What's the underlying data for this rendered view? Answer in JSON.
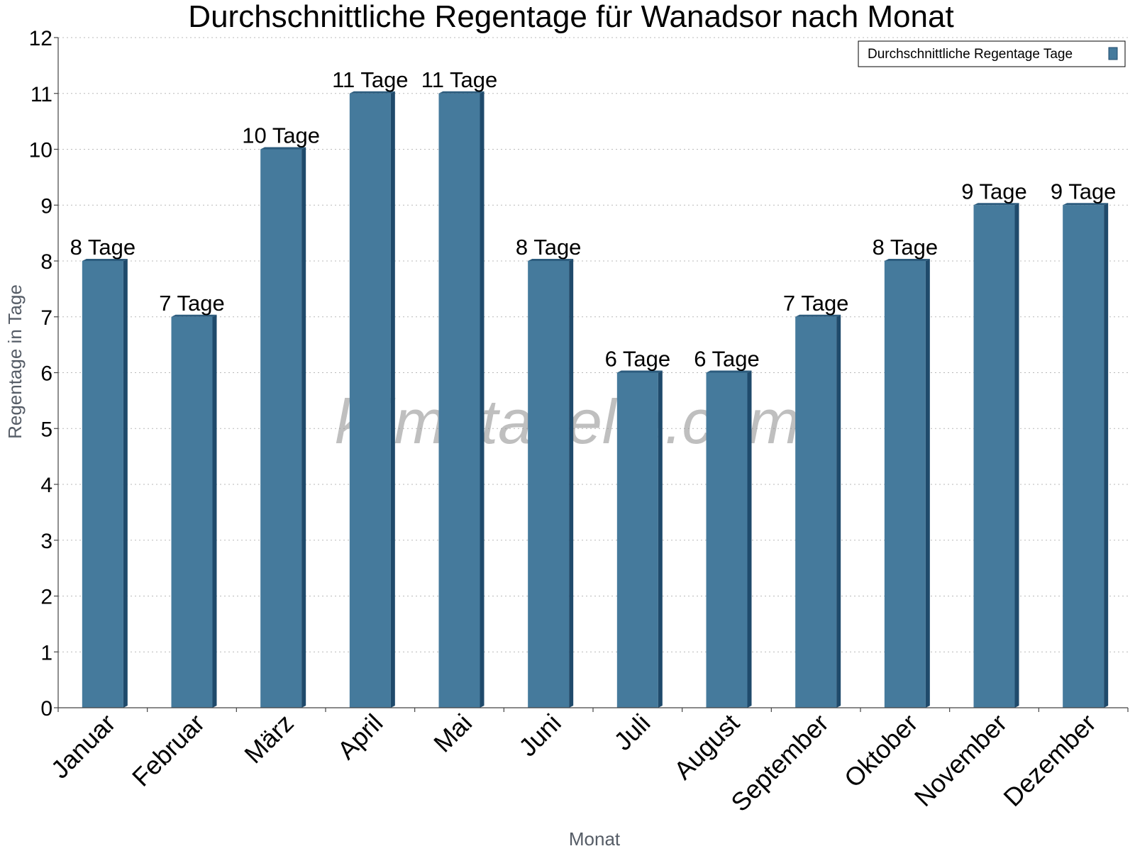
{
  "colors": {
    "bar": "#457a9c",
    "bar_side": "#1f4a6b",
    "bar_top": "#2c5c7e"
  },
  "watermark": "klimatabelle.com",
  "chart_data": {
    "type": "bar",
    "title": "Durchschnittliche Regentage für Wanadsor nach Monat",
    "xlabel": "Monat",
    "ylabel": "Regentage in Tage",
    "ylim": [
      0,
      12
    ],
    "yticks": [
      "0",
      "1",
      "2",
      "3",
      "4",
      "5",
      "6",
      "7",
      "8",
      "9",
      "10",
      "11",
      "12"
    ],
    "grid": true,
    "legend_position": "top-right",
    "categories": [
      "Januar",
      "Februar",
      "März",
      "April",
      "Mai",
      "Juni",
      "Juli",
      "August",
      "September",
      "Oktober",
      "November",
      "Dezember"
    ],
    "series": [
      {
        "name": "Durchschnittliche Regentage Tage",
        "values": [
          8,
          7,
          10,
          11,
          11,
          8,
          6,
          6,
          7,
          8,
          9,
          9
        ],
        "labels": [
          "8 Tage",
          "7 Tage",
          "10 Tage",
          "11 Tage",
          "11 Tage",
          "8 Tage",
          "6 Tage",
          "6 Tage",
          "7 Tage",
          "8 Tage",
          "9 Tage",
          "9 Tage"
        ]
      }
    ]
  }
}
